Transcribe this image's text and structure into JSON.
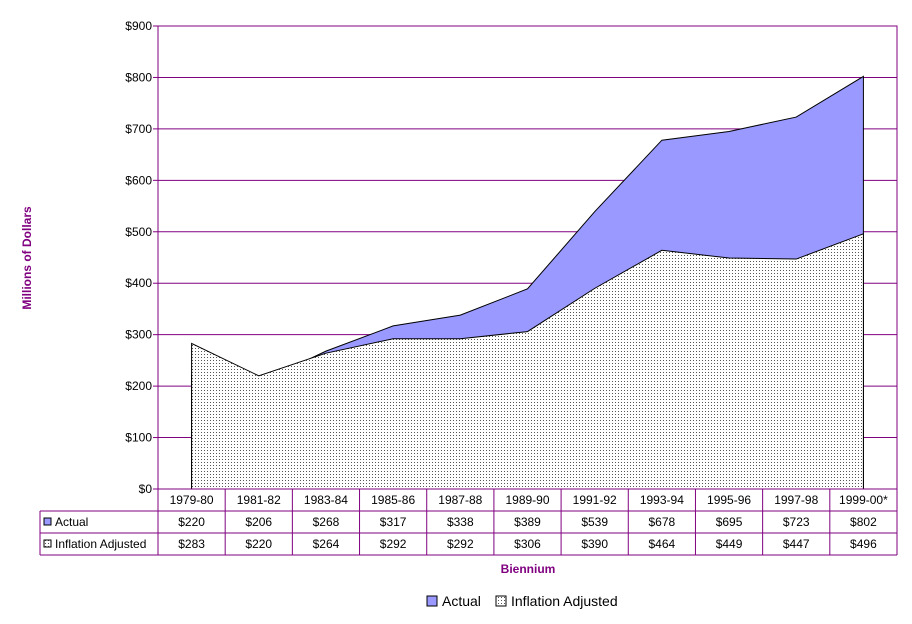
{
  "chart_data": {
    "type": "area",
    "categories": [
      "1979-80",
      "1981-82",
      "1983-84",
      "1985-86",
      "1987-88",
      "1989-90",
      "1991-92",
      "1993-94",
      "1995-96",
      "1997-98",
      "1999-00*"
    ],
    "series": [
      {
        "name": "Actual",
        "values": [
          220,
          206,
          268,
          317,
          338,
          389,
          539,
          678,
          695,
          723,
          802
        ],
        "labels": [
          "$220",
          "$206",
          "$268",
          "$317",
          "$338",
          "$389",
          "$539",
          "$678",
          "$695",
          "$723",
          "$802"
        ],
        "color": "#9999ff"
      },
      {
        "name": "Inflation Adjusted",
        "values": [
          283,
          220,
          264,
          292,
          292,
          306,
          390,
          464,
          449,
          447,
          496
        ],
        "labels": [
          "$283",
          "$220",
          "$264",
          "$292",
          "$292",
          "$306",
          "$390",
          "$464",
          "$449",
          "$447",
          "$496"
        ],
        "color": "#ffffff"
      }
    ],
    "ylabel": "Millions of Dollars",
    "xlabel": "Biennium",
    "ylim": [
      0,
      900
    ],
    "yticks": [
      0,
      100,
      200,
      300,
      400,
      500,
      600,
      700,
      800,
      900
    ],
    "ytick_labels": [
      "$0",
      "$100",
      "$200",
      "$300",
      "$400",
      "$500",
      "$600",
      "$700",
      "$800",
      "$900"
    ],
    "grid": true,
    "legend": "bottom",
    "data_table": true,
    "axis_color": "#800080"
  }
}
